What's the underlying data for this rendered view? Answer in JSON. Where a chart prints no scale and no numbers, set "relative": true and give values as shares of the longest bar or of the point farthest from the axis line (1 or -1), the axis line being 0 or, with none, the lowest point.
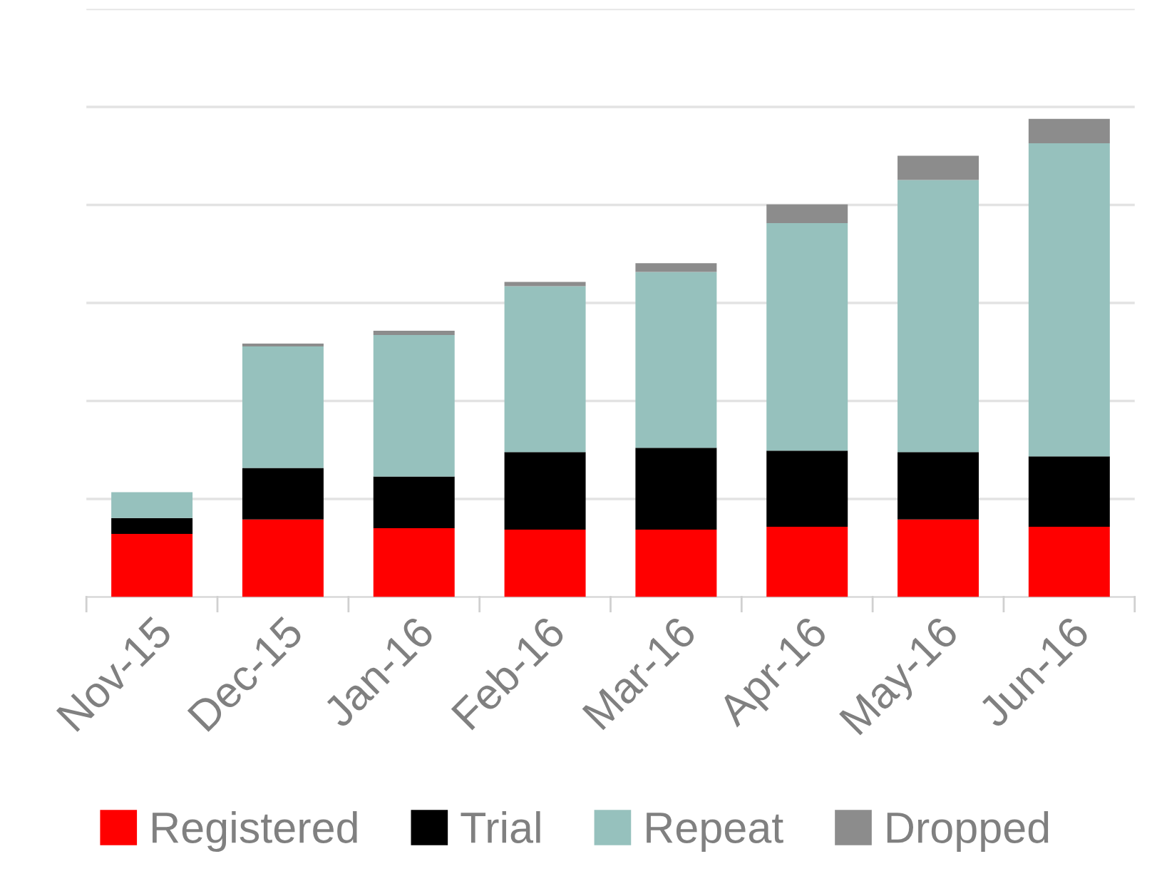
{
  "chart_data": {
    "type": "bar",
    "stacked": true,
    "relative": true,
    "grid": "y",
    "legend": "bottom",
    "categories": [
      "Nov-15",
      "Dec-15",
      "Jan-16",
      "Feb-16",
      "Mar-16",
      "Apr-16",
      "May-16",
      "Jun-16"
    ],
    "series": [
      {
        "name": "Registered",
        "color": "#ff0000",
        "values": [
          0.132,
          0.162,
          0.144,
          0.141,
          0.141,
          0.147,
          0.162,
          0.147
        ]
      },
      {
        "name": "Trial",
        "color": "#000000",
        "values": [
          0.033,
          0.108,
          0.108,
          0.162,
          0.171,
          0.159,
          0.141,
          0.147
        ]
      },
      {
        "name": "Repeat",
        "color": "#96c1bd",
        "values": [
          0.054,
          0.254,
          0.296,
          0.347,
          0.368,
          0.476,
          0.569,
          0.655
        ]
      },
      {
        "name": "Dropped",
        "color": "#8c8c8c",
        "values": [
          0.0,
          0.006,
          0.009,
          0.009,
          0.018,
          0.039,
          0.051,
          0.051
        ]
      }
    ]
  }
}
